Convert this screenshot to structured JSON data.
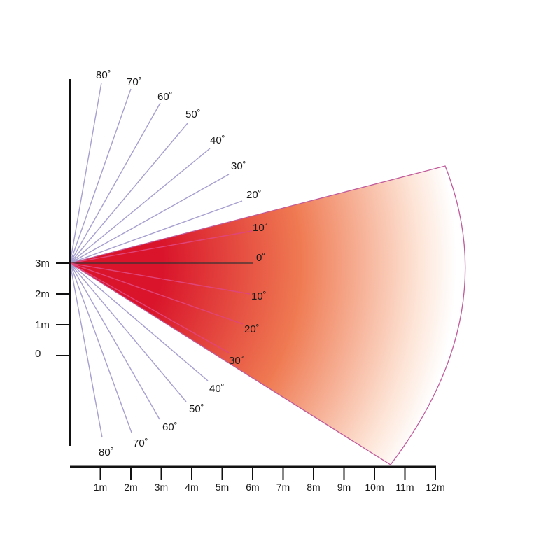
{
  "colors": {
    "axis": "#111111",
    "upper_ray": "#a69fcf",
    "lower_ray_out": "#a69fcf",
    "inner_ray": "#e0457a",
    "center_ray": "#333333",
    "cone_outline": "#c05a9a",
    "heat_core": "#d9142b",
    "heat_mid": "#ef7a52",
    "heat_edge": "#fde4d6"
  },
  "height_labels": [
    "3m",
    "2m",
    "1m",
    "0"
  ],
  "distance_labels": [
    "1m",
    "2m",
    "3m",
    "4m",
    "5m",
    "6m",
    "7m",
    "8m",
    "9m",
    "10m",
    "11m",
    "12m"
  ],
  "angle_labels": {
    "upper": [
      "80˚",
      "70˚",
      "60˚",
      "50˚",
      "40˚",
      "30˚",
      "20˚",
      "10˚"
    ],
    "center": "0˚",
    "lower": [
      "10˚",
      "20˚",
      "30˚",
      "40˚",
      "50˚",
      "60˚",
      "70˚",
      "80˚"
    ]
  },
  "detection_zone": {
    "angle_above_deg": 20,
    "angle_below_deg": 40
  }
}
